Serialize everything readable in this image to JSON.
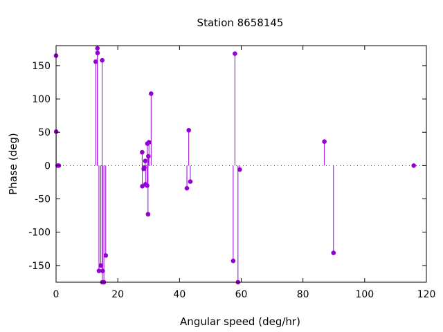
{
  "chart_data": {
    "type": "stem",
    "title": "Station 8658145",
    "xlabel": "Angular speed (deg/hr)",
    "ylabel": "Phase (deg)",
    "xlim": [
      0,
      120
    ],
    "ylim": [
      -175,
      180
    ],
    "xticks": [
      0,
      20,
      40,
      60,
      80,
      100,
      120
    ],
    "yticks": [
      -150,
      -100,
      -50,
      0,
      50,
      100,
      150
    ],
    "grid": false,
    "zero_line": "dotted",
    "color": "#9400d3",
    "points": [
      {
        "x": 0.0,
        "y": 165
      },
      {
        "x": 0.04,
        "y": 51
      },
      {
        "x": 0.5,
        "y": 0
      },
      {
        "x": 0.9,
        "y": 0
      },
      {
        "x": 12.85,
        "y": 156
      },
      {
        "x": 13.4,
        "y": 176
      },
      {
        "x": 13.45,
        "y": 169
      },
      {
        "x": 13.9,
        "y": -158
      },
      {
        "x": 14.5,
        "y": -150
      },
      {
        "x": 14.95,
        "y": 158
      },
      {
        "x": 15.0,
        "y": -175
      },
      {
        "x": 15.1,
        "y": -158
      },
      {
        "x": 15.5,
        "y": -175
      },
      {
        "x": 16.1,
        "y": -135
      },
      {
        "x": 27.9,
        "y": 20
      },
      {
        "x": 27.95,
        "y": -31
      },
      {
        "x": 28.4,
        "y": -5
      },
      {
        "x": 28.6,
        "y": -3
      },
      {
        "x": 28.9,
        "y": 7
      },
      {
        "x": 29.0,
        "y": -28
      },
      {
        "x": 29.5,
        "y": -30
      },
      {
        "x": 29.6,
        "y": 33
      },
      {
        "x": 29.8,
        "y": -73
      },
      {
        "x": 29.9,
        "y": 14
      },
      {
        "x": 30.1,
        "y": 35
      },
      {
        "x": 30.8,
        "y": 108
      },
      {
        "x": 42.4,
        "y": -34
      },
      {
        "x": 43.0,
        "y": 53
      },
      {
        "x": 43.5,
        "y": -24
      },
      {
        "x": 57.4,
        "y": -143
      },
      {
        "x": 57.95,
        "y": 168
      },
      {
        "x": 58.95,
        "y": -175
      },
      {
        "x": 59.5,
        "y": -6
      },
      {
        "x": 86.95,
        "y": 36
      },
      {
        "x": 89.9,
        "y": -131
      },
      {
        "x": 115.9,
        "y": 0
      }
    ]
  }
}
